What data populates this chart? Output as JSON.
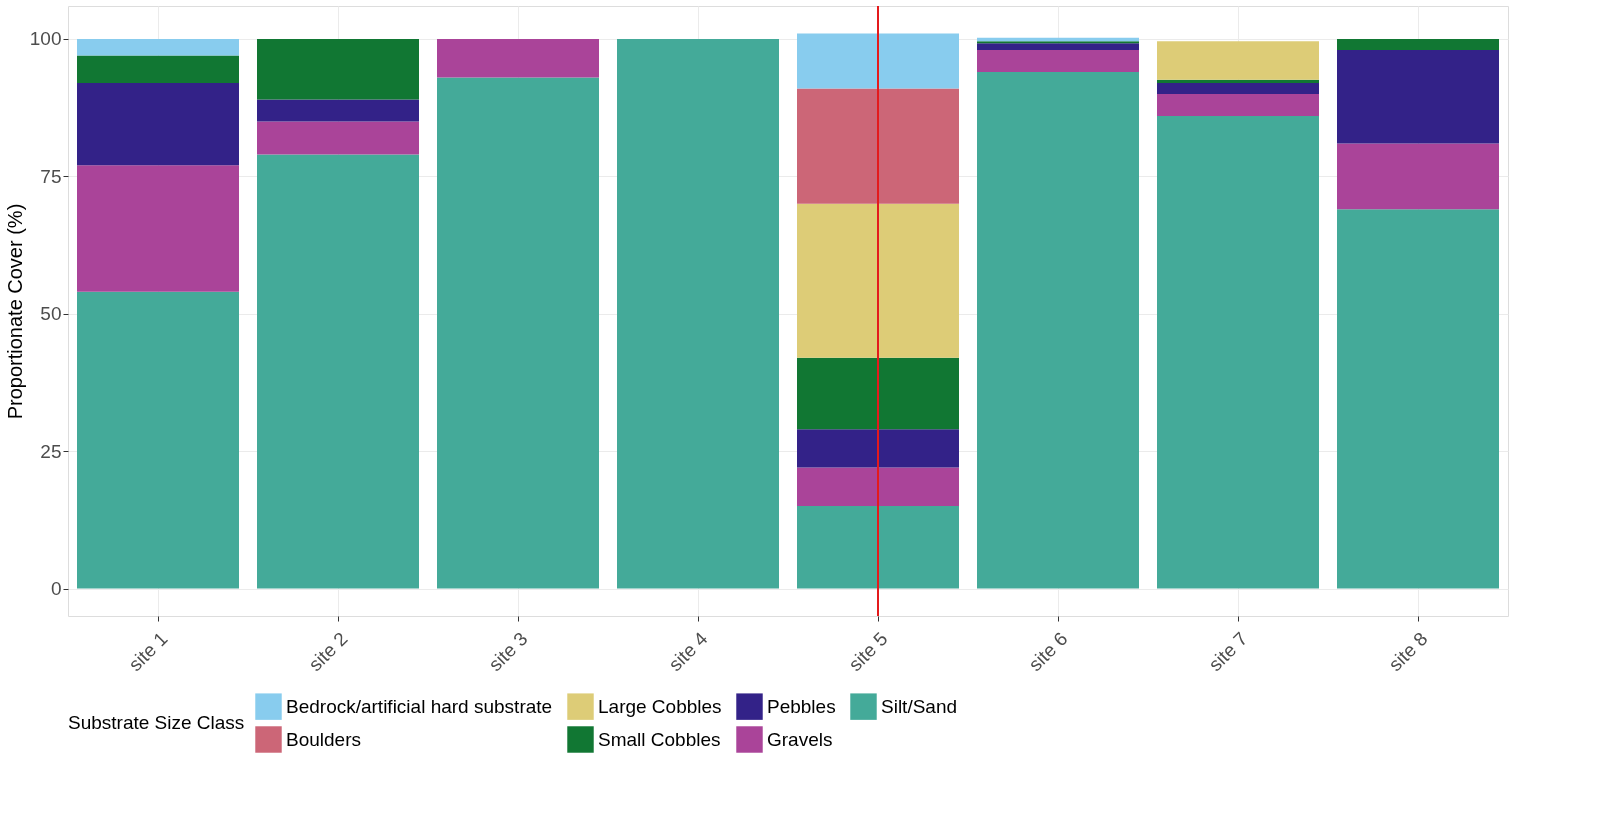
{
  "chart_data": {
    "type": "bar",
    "stacked": true,
    "ylabel": "Proportionate Cover (%)",
    "legend_title": "Substrate Size Class",
    "legend": "bottom",
    "grid": true,
    "categories": [
      "site 1",
      "site 2",
      "site 3",
      "site 4",
      "site 5",
      "site 6",
      "site 7",
      "site 8"
    ],
    "ylim": [
      -5,
      106
    ],
    "yticks": [
      0,
      25,
      50,
      75,
      100
    ],
    "series": [
      {
        "name": "Silt/Sand",
        "color": "#44aa99",
        "values": [
          54,
          79,
          93,
          100,
          15,
          94,
          86,
          69
        ]
      },
      {
        "name": "Gravels",
        "color": "#aa4499",
        "values": [
          23,
          6,
          7,
          null,
          7,
          4,
          4,
          12
        ]
      },
      {
        "name": "Pebbles",
        "color": "#332288",
        "values": [
          15,
          4,
          null,
          null,
          7,
          1.2,
          2,
          17
        ]
      },
      {
        "name": "Small Cobbles",
        "color": "#117733",
        "values": [
          5,
          11,
          null,
          null,
          13,
          0.4,
          0.6,
          2
        ]
      },
      {
        "name": "Large Cobbles",
        "color": "#ddcc77",
        "values": [
          null,
          null,
          null,
          null,
          28,
          null,
          7,
          null
        ]
      },
      {
        "name": "Boulders",
        "color": "#cc6677",
        "values": [
          null,
          null,
          null,
          null,
          21,
          null,
          null,
          null
        ]
      },
      {
        "name": "Bedrock/artificial hard substrate",
        "color": "#88ccee",
        "values": [
          3,
          null,
          null,
          null,
          10,
          0.6,
          null,
          null
        ]
      }
    ],
    "ref_lines": [
      {
        "axis": "x",
        "value": "site 5",
        "color": "#e41a1c"
      }
    ]
  }
}
